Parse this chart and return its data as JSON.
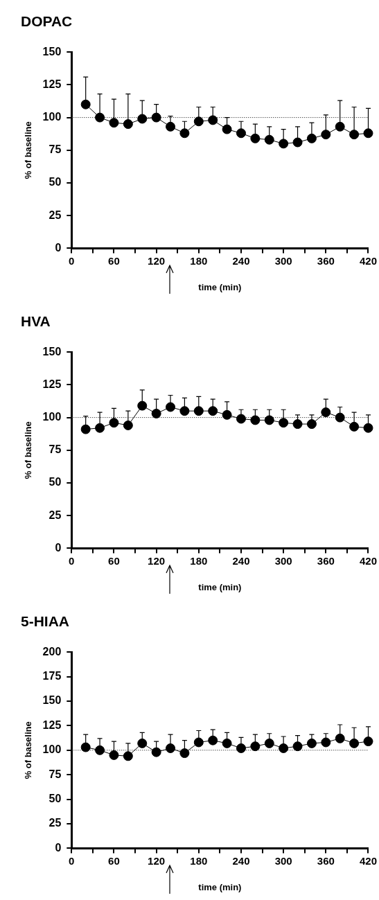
{
  "chart_data": [
    {
      "type": "line",
      "title": "DOPAC",
      "xlabel": "time (min)",
      "ylabel": "% of baseline",
      "xlim": [
        0,
        420
      ],
      "ylim": [
        0,
        150
      ],
      "xticks": [
        0,
        {
          "value": 30,
          "label": null
        },
        60,
        {
          "value": 90,
          "label": null
        },
        120,
        {
          "value": 150,
          "label": null
        },
        180,
        {
          "value": 210,
          "label": null
        },
        240,
        {
          "value": 270,
          "label": null
        },
        300,
        {
          "value": 330,
          "label": null
        },
        360,
        {
          "value": 390,
          "label": null
        },
        420
      ],
      "yticks": [
        0,
        25,
        50,
        75,
        100,
        125,
        150
      ],
      "grid": false,
      "legend": false,
      "marker": "circle",
      "line_style": "solid",
      "x": [
        20,
        40,
        60,
        80,
        100,
        120,
        140,
        160,
        180,
        200,
        220,
        240,
        260,
        280,
        300,
        320,
        340,
        360,
        380,
        400,
        420
      ],
      "series": [
        {
          "color": "#000000",
          "values": [
            110,
            100,
            96,
            95,
            99,
            100,
            93,
            88,
            97,
            98,
            91,
            88,
            84,
            83,
            80,
            81,
            84,
            87,
            93,
            87,
            88
          ],
          "errors": [
            [
              110,
              131
            ],
            [
              100,
              118
            ],
            [
              96,
              114
            ],
            [
              95,
              118
            ],
            [
              99,
              113
            ],
            [
              100,
              110
            ],
            [
              93,
              101
            ],
            [
              88,
              97
            ],
            [
              97,
              108
            ],
            [
              98,
              108
            ],
            [
              91,
              100
            ],
            [
              88,
              97
            ],
            [
              84,
              95
            ],
            [
              83,
              93
            ],
            [
              80,
              91
            ],
            [
              81,
              93
            ],
            [
              84,
              96
            ],
            [
              87,
              102
            ],
            [
              93,
              113
            ],
            [
              87,
              108
            ],
            [
              88,
              107
            ]
          ]
        }
      ],
      "ref_lines": [
        {
          "axis": "y",
          "value": 100,
          "line_style": "dotted",
          "color": "#000000"
        }
      ]
    },
    {
      "type": "line",
      "title": "HVA",
      "xlabel": "time (min)",
      "ylabel": "% of baseline",
      "xlim": [
        0,
        420
      ],
      "ylim": [
        0,
        150
      ],
      "xticks": [
        0,
        {
          "value": 30,
          "label": null
        },
        60,
        {
          "value": 90,
          "label": null
        },
        120,
        {
          "value": 150,
          "label": null
        },
        180,
        {
          "value": 210,
          "label": null
        },
        240,
        {
          "value": 270,
          "label": null
        },
        300,
        {
          "value": 330,
          "label": null
        },
        360,
        {
          "value": 390,
          "label": null
        },
        420
      ],
      "yticks": [
        0,
        25,
        50,
        75,
        100,
        125,
        150
      ],
      "grid": false,
      "legend": false,
      "marker": "circle",
      "line_style": "solid",
      "x": [
        20,
        40,
        60,
        80,
        100,
        120,
        140,
        160,
        180,
        200,
        220,
        240,
        260,
        280,
        300,
        320,
        340,
        360,
        380,
        400,
        420
      ],
      "series": [
        {
          "color": "#000000",
          "values": [
            91,
            92,
            96,
            94,
            109,
            103,
            108,
            105,
            105,
            105,
            102,
            99,
            98,
            98,
            96,
            95,
            95,
            104,
            100,
            93,
            92
          ],
          "errors": [
            [
              91,
              101
            ],
            [
              92,
              104
            ],
            [
              96,
              107
            ],
            [
              94,
              105
            ],
            [
              109,
              121
            ],
            [
              103,
              114
            ],
            [
              108,
              117
            ],
            [
              105,
              115
            ],
            [
              105,
              116
            ],
            [
              105,
              114
            ],
            [
              102,
              112
            ],
            [
              99,
              106
            ],
            [
              98,
              106
            ],
            [
              98,
              106
            ],
            [
              96,
              106
            ],
            [
              95,
              102
            ],
            [
              95,
              102
            ],
            [
              104,
              114
            ],
            [
              100,
              108
            ],
            [
              93,
              104
            ],
            [
              92,
              102
            ]
          ]
        }
      ],
      "ref_lines": [
        {
          "axis": "y",
          "value": 100,
          "line_style": "dotted",
          "color": "#000000"
        }
      ]
    },
    {
      "type": "line",
      "title": "5-HIAA",
      "xlabel": "time (min)",
      "ylabel": "% of baseline",
      "xlim": [
        0,
        420
      ],
      "ylim": [
        0,
        200
      ],
      "xticks": [
        0,
        {
          "value": 30,
          "label": null
        },
        60,
        {
          "value": 90,
          "label": null
        },
        120,
        {
          "value": 150,
          "label": null
        },
        180,
        {
          "value": 210,
          "label": null
        },
        240,
        {
          "value": 270,
          "label": null
        },
        300,
        {
          "value": 330,
          "label": null
        },
        360,
        {
          "value": 390,
          "label": null
        },
        420
      ],
      "yticks": [
        0,
        25,
        50,
        75,
        100,
        125,
        150,
        175,
        200
      ],
      "grid": false,
      "legend": false,
      "marker": "circle",
      "line_style": "solid",
      "x": [
        20,
        40,
        60,
        80,
        100,
        120,
        140,
        160,
        180,
        200,
        220,
        240,
        260,
        280,
        300,
        320,
        340,
        360,
        380,
        400,
        420
      ],
      "series": [
        {
          "color": "#000000",
          "values": [
            103,
            100,
            95,
            94,
            107,
            98,
            102,
            97,
            108,
            110,
            107,
            102,
            104,
            107,
            102,
            104,
            107,
            108,
            112,
            107,
            109
          ],
          "errors": [
            [
              103,
              116
            ],
            [
              100,
              112
            ],
            [
              95,
              109
            ],
            [
              94,
              107
            ],
            [
              107,
              118
            ],
            [
              98,
              109
            ],
            [
              102,
              116
            ],
            [
              97,
              110
            ],
            [
              108,
              120
            ],
            [
              110,
              121
            ],
            [
              107,
              118
            ],
            [
              102,
              113
            ],
            [
              104,
              116
            ],
            [
              107,
              117
            ],
            [
              102,
              114
            ],
            [
              104,
              115
            ],
            [
              107,
              116
            ],
            [
              108,
              117
            ],
            [
              112,
              126
            ],
            [
              107,
              123
            ],
            [
              109,
              124
            ]
          ]
        }
      ],
      "ref_lines": [
        {
          "axis": "y",
          "value": 100,
          "line_style": "dotted",
          "color": "#000000"
        }
      ]
    }
  ]
}
